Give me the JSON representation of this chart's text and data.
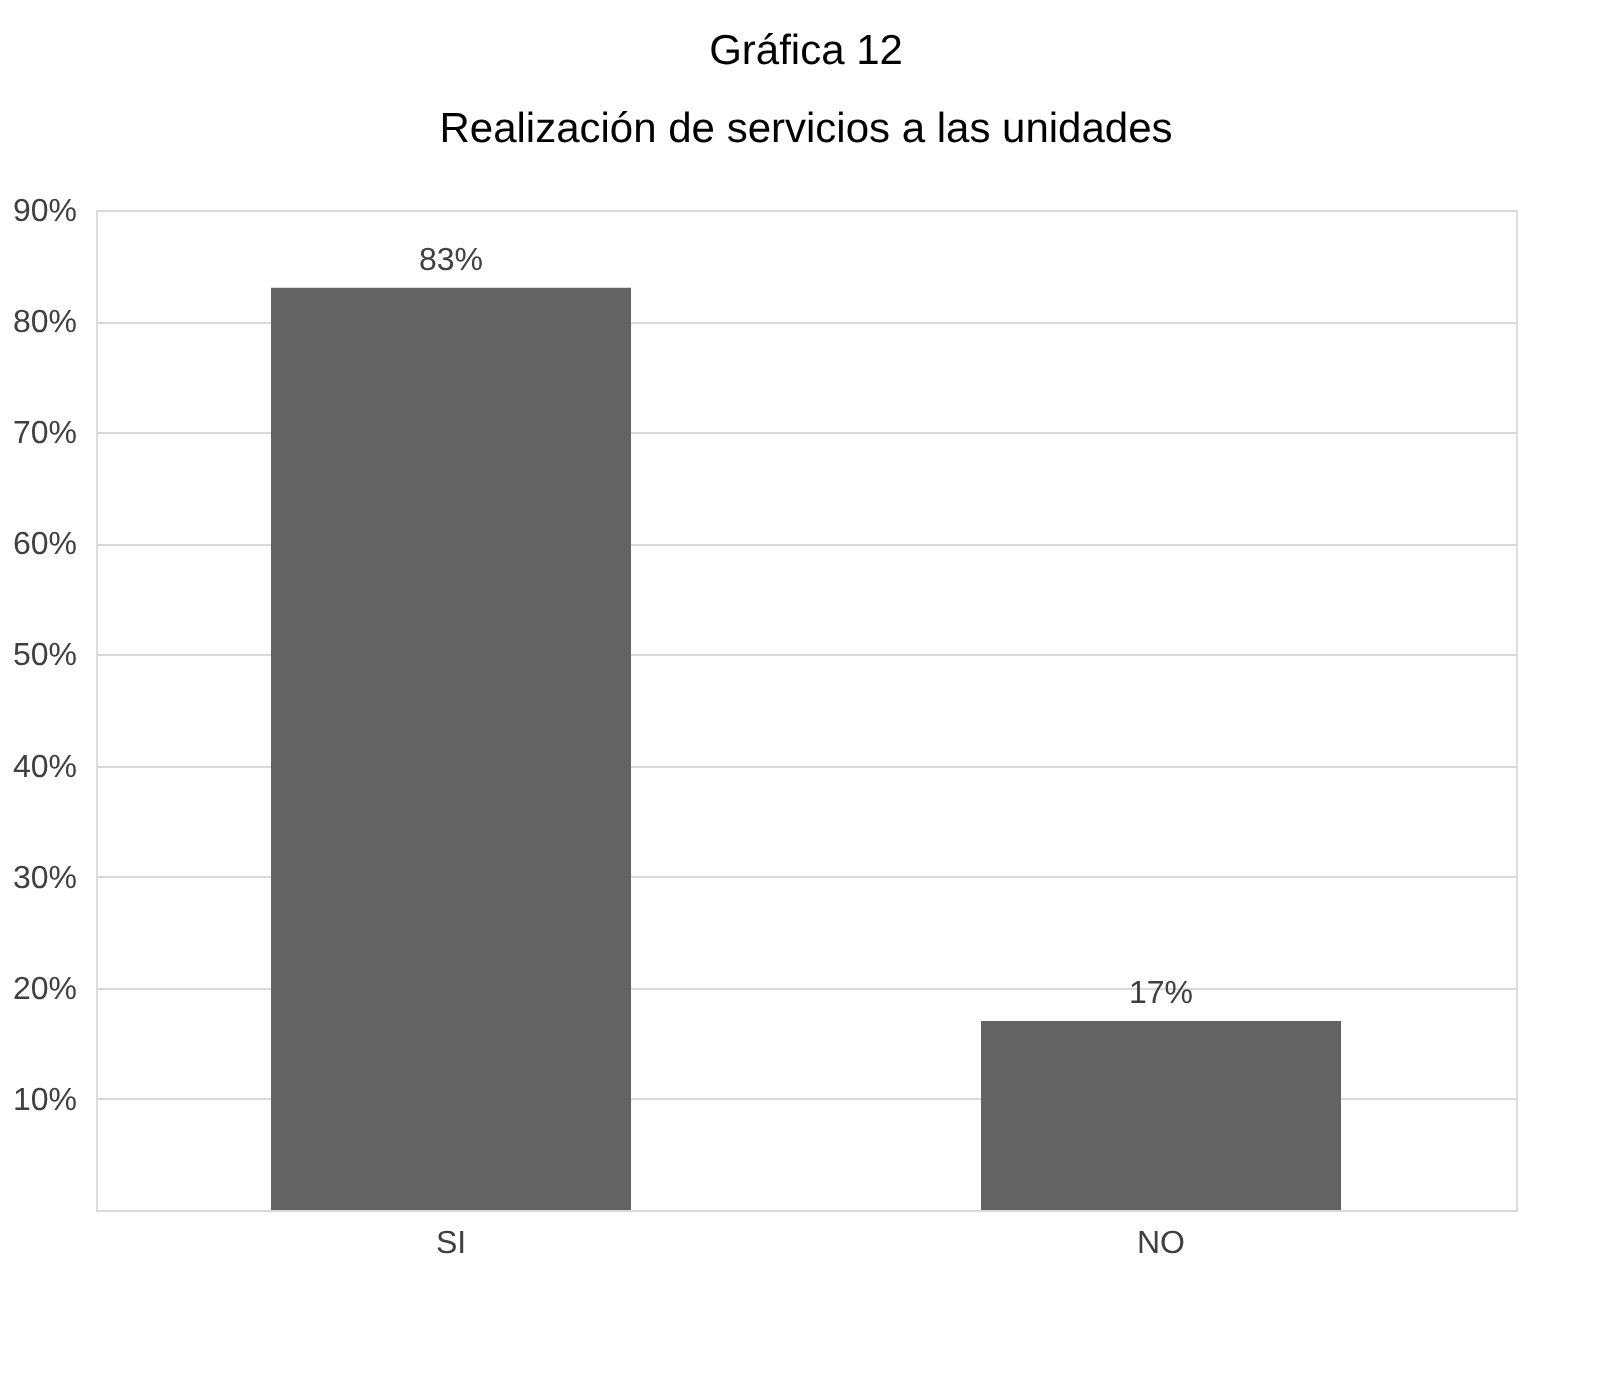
{
  "chart_data": {
    "type": "bar",
    "title": "Gráfica 12",
    "subtitle": "Realización de servicios a las unidades",
    "categories": [
      "SI",
      "NO"
    ],
    "values": [
      83,
      17
    ],
    "value_labels": [
      "83%",
      "17%"
    ],
    "color": "#636363",
    "ylim": [
      0,
      90
    ],
    "yticks": [
      {
        "value": 0,
        "label": null
      },
      {
        "value": 10,
        "label": "10%"
      },
      {
        "value": 20,
        "label": "20%"
      },
      {
        "value": 30,
        "label": "30%"
      },
      {
        "value": 40,
        "label": "40%"
      },
      {
        "value": 50,
        "label": "50%"
      },
      {
        "value": 60,
        "label": "60%"
      },
      {
        "value": 70,
        "label": "70%"
      },
      {
        "value": 80,
        "label": "80%"
      },
      {
        "value": 90,
        "label": "90%"
      }
    ],
    "grid": "y"
  }
}
